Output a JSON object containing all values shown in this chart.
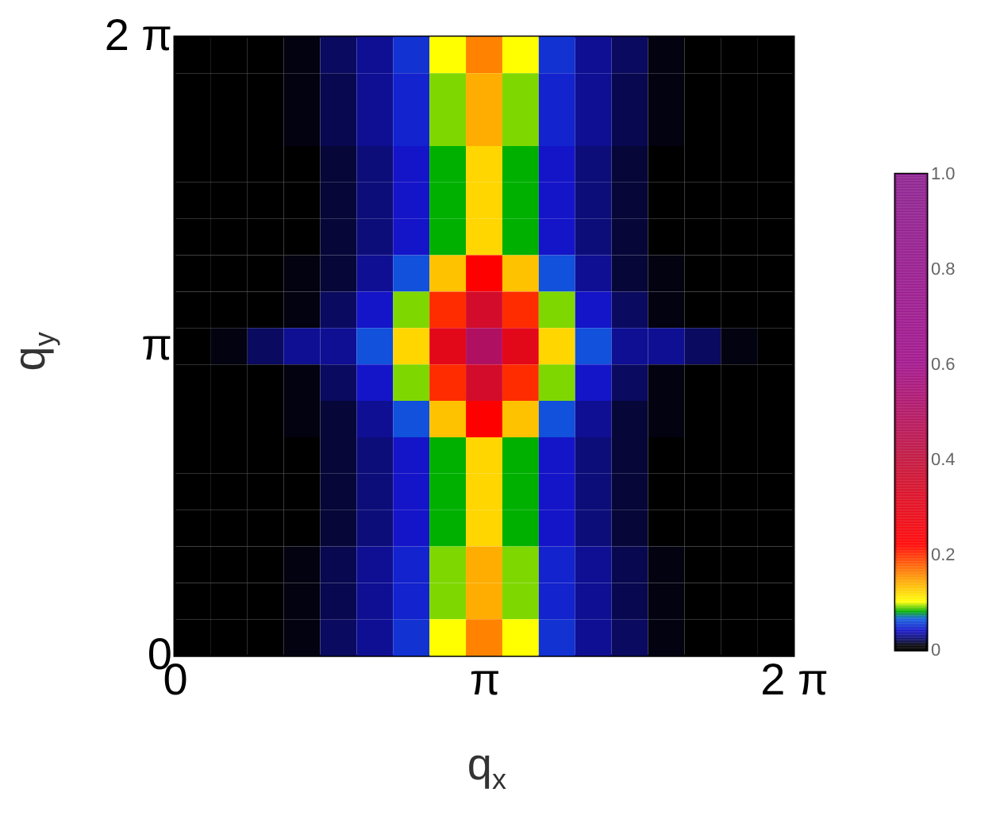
{
  "chart_data": {
    "type": "heatmap",
    "xlabel": "q$_{x}$",
    "ylabel": "q$_{y}$",
    "x": [
      0.1848,
      0.5544,
      0.924,
      1.2936,
      1.6632,
      2.0328,
      2.4024,
      2.772,
      3.1416,
      3.5112,
      3.8808,
      4.2504,
      4.62,
      4.9896,
      5.3592,
      5.7288,
      6.0984
    ],
    "y": [
      6.0984,
      5.7288,
      5.3592,
      4.9896,
      4.62,
      4.2504,
      3.8808,
      3.5112,
      3.1416,
      2.772,
      2.4024,
      2.0328,
      1.6632,
      1.2936,
      0.924,
      0.5544,
      0.1848
    ],
    "xlim": [
      0,
      6.2832
    ],
    "ylim": [
      0,
      6.2832
    ],
    "xticks": [
      {
        "value": 0,
        "label": "0"
      },
      {
        "value": 3.1416,
        "label": "π"
      },
      {
        "value": 6.2832,
        "label": "2 π"
      }
    ],
    "yticks": [
      {
        "value": 0,
        "label": "0"
      },
      {
        "value": 3.1416,
        "label": "π"
      },
      {
        "value": 6.2832,
        "label": "2 π"
      }
    ],
    "clim": [
      0,
      1
    ],
    "cticks": [
      0,
      0.2,
      0.4,
      0.6,
      0.8,
      {
        "value": 1,
        "label": "1.0"
      }
    ],
    "cells": [
      [
        0,
        0,
        0.005,
        0.01,
        0.02,
        0.03,
        0.05,
        0.1,
        0.16,
        0.1,
        0.05,
        0.03,
        0.02,
        0.01,
        0.005,
        0,
        0
      ],
      [
        0,
        0,
        0.005,
        0.01,
        0.018,
        0.03,
        0.045,
        0.09,
        0.14,
        0.09,
        0.045,
        0.03,
        0.018,
        0.01,
        0.005,
        0,
        0
      ],
      [
        0,
        0,
        0.005,
        0.01,
        0.018,
        0.03,
        0.045,
        0.09,
        0.14,
        0.09,
        0.045,
        0.03,
        0.018,
        0.01,
        0.005,
        0,
        0
      ],
      [
        0,
        0,
        0.004,
        0.008,
        0.015,
        0.025,
        0.04,
        0.08,
        0.12,
        0.08,
        0.04,
        0.025,
        0.015,
        0.008,
        0.004,
        0,
        0
      ],
      [
        0,
        0,
        0.004,
        0.008,
        0.015,
        0.025,
        0.04,
        0.08,
        0.12,
        0.08,
        0.04,
        0.025,
        0.015,
        0.008,
        0.004,
        0,
        0
      ],
      [
        0,
        0,
        0.004,
        0.008,
        0.015,
        0.025,
        0.04,
        0.08,
        0.12,
        0.08,
        0.04,
        0.025,
        0.015,
        0.008,
        0.004,
        0,
        0
      ],
      [
        0,
        0,
        0.005,
        0.01,
        0.015,
        0.03,
        0.06,
        0.13,
        0.22,
        0.13,
        0.06,
        0.03,
        0.015,
        0.01,
        0.005,
        0,
        0
      ],
      [
        0,
        0,
        0.005,
        0.01,
        0.02,
        0.04,
        0.09,
        0.2,
        0.35,
        0.2,
        0.09,
        0.04,
        0.02,
        0.01,
        0.005,
        0,
        0
      ],
      [
        0,
        0.01,
        0.02,
        0.03,
        0.03,
        0.06,
        0.12,
        0.3,
        0.5,
        0.3,
        0.12,
        0.06,
        0.03,
        0.03,
        0.02,
        0.01,
        0
      ],
      [
        0,
        0,
        0.005,
        0.01,
        0.02,
        0.04,
        0.09,
        0.2,
        0.35,
        0.2,
        0.09,
        0.04,
        0.02,
        0.01,
        0.005,
        0,
        0
      ],
      [
        0,
        0,
        0.005,
        0.01,
        0.015,
        0.03,
        0.06,
        0.13,
        0.22,
        0.13,
        0.06,
        0.03,
        0.015,
        0.01,
        0.005,
        0,
        0
      ],
      [
        0,
        0,
        0.004,
        0.008,
        0.015,
        0.025,
        0.04,
        0.08,
        0.12,
        0.08,
        0.04,
        0.025,
        0.015,
        0.008,
        0.004,
        0,
        0
      ],
      [
        0,
        0,
        0.004,
        0.008,
        0.015,
        0.025,
        0.04,
        0.08,
        0.12,
        0.08,
        0.04,
        0.025,
        0.015,
        0.008,
        0.004,
        0,
        0
      ],
      [
        0,
        0,
        0.004,
        0.008,
        0.015,
        0.025,
        0.04,
        0.08,
        0.12,
        0.08,
        0.04,
        0.025,
        0.015,
        0.008,
        0.004,
        0,
        0
      ],
      [
        0,
        0,
        0.005,
        0.01,
        0.018,
        0.03,
        0.045,
        0.09,
        0.14,
        0.09,
        0.045,
        0.03,
        0.018,
        0.01,
        0.005,
        0,
        0
      ],
      [
        0,
        0,
        0.005,
        0.01,
        0.018,
        0.03,
        0.045,
        0.09,
        0.14,
        0.09,
        0.045,
        0.03,
        0.018,
        0.01,
        0.005,
        0,
        0
      ],
      [
        0,
        0,
        0.005,
        0.01,
        0.02,
        0.03,
        0.05,
        0.1,
        0.16,
        0.1,
        0.05,
        0.03,
        0.02,
        0.01,
        0.005,
        0,
        0
      ]
    ]
  }
}
